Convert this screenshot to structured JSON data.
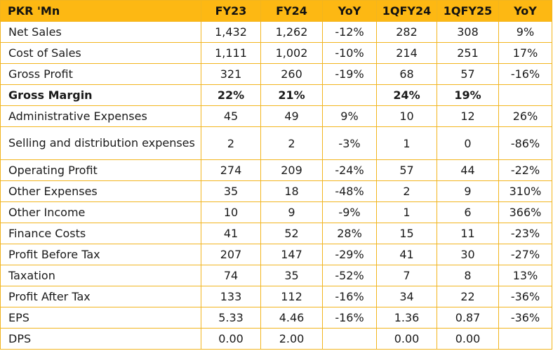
{
  "colors": {
    "header_bg": "#fdb813",
    "border": "#f2b51f"
  },
  "table": {
    "headers": [
      "PKR 'Mn",
      "FY23",
      "FY24",
      "YoY",
      "1QFY24",
      "1QFY25",
      "YoY"
    ],
    "rows": [
      {
        "label": "Net Sales",
        "values": [
          "1,432",
          "1,262",
          "-12%",
          "282",
          "308",
          "9%"
        ]
      },
      {
        "label": "Cost of Sales",
        "values": [
          "1,111",
          "1,002",
          "-10%",
          "214",
          "251",
          "17%"
        ]
      },
      {
        "label": "Gross Profit",
        "values": [
          "321",
          "260",
          "-19%",
          "68",
          "57",
          "-16%"
        ]
      },
      {
        "label": "Gross Margin",
        "values": [
          "22%",
          "21%",
          "",
          "24%",
          "19%",
          ""
        ]
      },
      {
        "label": "Administrative Expenses",
        "values": [
          "45",
          "49",
          "9%",
          "10",
          "12",
          "26%"
        ]
      },
      {
        "label": "Selling and distribution expenses",
        "values": [
          "2",
          "2",
          "-3%",
          "1",
          "0",
          "-86%"
        ]
      },
      {
        "label": "Operating Profit",
        "values": [
          "274",
          "209",
          "-24%",
          "57",
          "44",
          "-22%"
        ]
      },
      {
        "label": "Other Expenses",
        "values": [
          "35",
          "18",
          "-48%",
          "2",
          "9",
          "310%"
        ]
      },
      {
        "label": "Other Income",
        "values": [
          "10",
          "9",
          "-9%",
          "1",
          "6",
          "366%"
        ]
      },
      {
        "label": "Finance Costs",
        "values": [
          "41",
          "52",
          "28%",
          "15",
          "11",
          "-23%"
        ]
      },
      {
        "label": "Profit Before Tax",
        "values": [
          "207",
          "147",
          "-29%",
          "41",
          "30",
          "-27%"
        ]
      },
      {
        "label": "Taxation",
        "values": [
          "74",
          "35",
          "-52%",
          "7",
          "8",
          "13%"
        ]
      },
      {
        "label": "Profit After Tax",
        "values": [
          "133",
          "112",
          "-16%",
          "34",
          "22",
          "-36%"
        ]
      },
      {
        "label": "EPS",
        "values": [
          "5.33",
          "4.46",
          "-16%",
          "1.36",
          "0.87",
          "-36%"
        ]
      },
      {
        "label": "DPS",
        "values": [
          "0.00",
          "2.00",
          "",
          "0.00",
          "0.00",
          ""
        ]
      }
    ]
  }
}
